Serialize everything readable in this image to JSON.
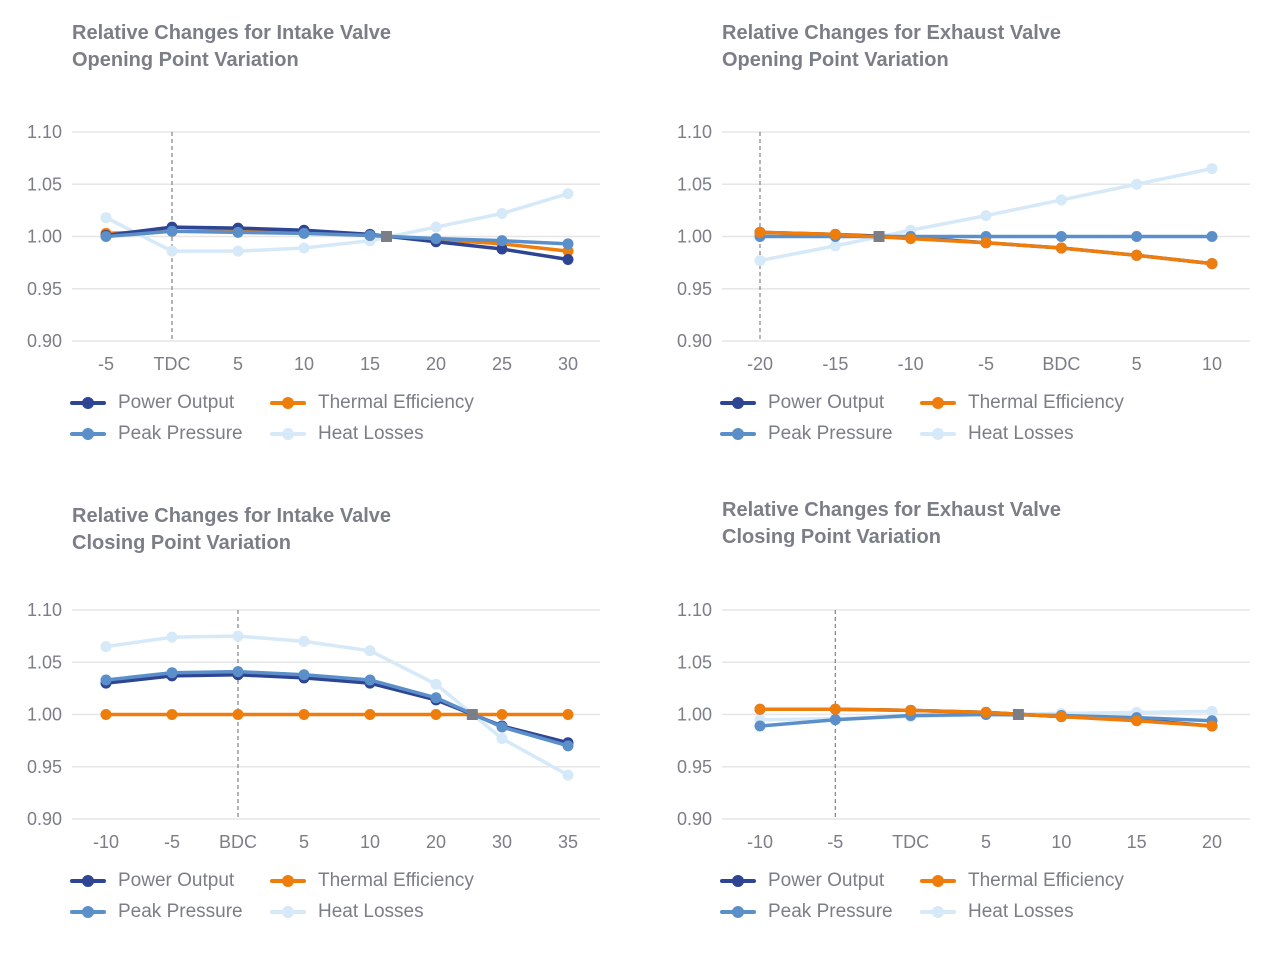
{
  "colors": {
    "power_output": "#2e4593",
    "peak_pressure": "#5b8fc9",
    "thermal_efficiency": "#ee7d0c",
    "heat_losses": "#d5e9f9",
    "reference": "#7b7e87",
    "grid": "#e6e6e6",
    "text": "#7b7e87"
  },
  "legend": [
    {
      "key": "power_output",
      "label": "Power Output"
    },
    {
      "key": "thermal_efficiency",
      "label": "Thermal Efficiency"
    },
    {
      "key": "peak_pressure",
      "label": "Peak Pressure"
    },
    {
      "key": "heat_losses",
      "label": "Heat Losses"
    }
  ],
  "chart_data": [
    {
      "type": "line",
      "title_line1": "Relative Changes for Intake Valve",
      "title_line2": "Opening Point Variation",
      "categories": [
        "-5",
        "TDC",
        "5",
        "10",
        "15",
        "20",
        "25",
        "30"
      ],
      "ylim": [
        0.9,
        1.1
      ],
      "yticks": [
        "0.90",
        "0.95",
        "1.00",
        "1.05",
        "1.10"
      ],
      "grid": true,
      "legend_position": "bottom",
      "marker_line_category_index": 1,
      "reference_point": {
        "x_index": 4.25,
        "y": 1.0
      },
      "series": [
        {
          "name": "Heat Losses",
          "key": "heat_losses",
          "values": [
            1.018,
            0.986,
            0.986,
            0.989,
            0.996,
            1.009,
            1.022,
            1.041
          ]
        },
        {
          "name": "Thermal Efficiency",
          "key": "thermal_efficiency",
          "values": [
            1.003,
            1.005,
            1.005,
            1.004,
            1.001,
            0.997,
            0.993,
            0.986
          ]
        },
        {
          "name": "Power Output",
          "key": "power_output",
          "values": [
            1.001,
            1.009,
            1.008,
            1.006,
            1.002,
            0.995,
            0.988,
            0.978
          ]
        },
        {
          "name": "Peak Pressure",
          "key": "peak_pressure",
          "values": [
            1.0,
            1.005,
            1.004,
            1.003,
            1.001,
            0.998,
            0.996,
            0.993
          ]
        }
      ]
    },
    {
      "type": "line",
      "title_line1": "Relative Changes for Exhaust Valve",
      "title_line2": "Opening Point Variation",
      "categories": [
        "-20",
        "-15",
        "-10",
        "-5",
        "BDC",
        "5",
        "10"
      ],
      "ylim": [
        0.9,
        1.1
      ],
      "yticks": [
        "0.90",
        "0.95",
        "1.00",
        "1.05",
        "1.10"
      ],
      "grid": true,
      "legend_position": "bottom",
      "marker_line_category_index": 0,
      "reference_point": {
        "x_index": 1.58,
        "y": 1.0
      },
      "series": [
        {
          "name": "Heat Losses",
          "key": "heat_losses",
          "values": [
            0.977,
            0.991,
            1.006,
            1.02,
            1.035,
            1.05,
            1.065
          ]
        },
        {
          "name": "Power Output",
          "key": "power_output",
          "values": [
            1.004,
            1.002,
            0.999,
            0.994,
            0.989,
            0.982,
            0.974
          ]
        },
        {
          "name": "Peak Pressure",
          "key": "peak_pressure",
          "values": [
            1.0,
            1.0,
            1.0,
            1.0,
            1.0,
            1.0,
            1.0
          ]
        },
        {
          "name": "Thermal Efficiency",
          "key": "thermal_efficiency",
          "values": [
            1.004,
            1.002,
            0.998,
            0.994,
            0.989,
            0.982,
            0.974
          ]
        }
      ]
    },
    {
      "type": "line",
      "title_line1": "Relative Changes for Intake Valve",
      "title_line2": "Closing Point Variation",
      "categories": [
        "-10",
        "-5",
        "BDC",
        "5",
        "10",
        "20",
        "30",
        "35"
      ],
      "ylim": [
        0.9,
        1.1
      ],
      "yticks": [
        "0.90",
        "0.95",
        "1.00",
        "1.05",
        "1.10"
      ],
      "grid": true,
      "legend_position": "bottom",
      "marker_line_category_index": 2,
      "reference_point": {
        "x_index": 5.55,
        "y": 1.0
      },
      "series": [
        {
          "name": "Heat Losses",
          "key": "heat_losses",
          "values": [
            1.065,
            1.074,
            1.075,
            1.07,
            1.061,
            1.029,
            0.977,
            0.942
          ]
        },
        {
          "name": "Thermal Efficiency",
          "key": "thermal_efficiency",
          "values": [
            1.0,
            1.0,
            1.0,
            1.0,
            1.0,
            1.0,
            1.0,
            1.0
          ]
        },
        {
          "name": "Power Output",
          "key": "power_output",
          "values": [
            1.03,
            1.037,
            1.038,
            1.035,
            1.03,
            1.014,
            0.989,
            0.973
          ]
        },
        {
          "name": "Peak Pressure",
          "key": "peak_pressure",
          "values": [
            1.033,
            1.04,
            1.041,
            1.038,
            1.033,
            1.016,
            0.988,
            0.97
          ]
        }
      ]
    },
    {
      "type": "line",
      "title_line1": "Relative Changes for Exhaust Valve",
      "title_line2": "Closing Point Variation",
      "categories": [
        "-10",
        "-5",
        "TDC",
        "5",
        "10",
        "15",
        "20"
      ],
      "ylim": [
        0.9,
        1.1
      ],
      "yticks": [
        "0.90",
        "0.95",
        "1.00",
        "1.05",
        "1.10"
      ],
      "grid": true,
      "legend_position": "bottom",
      "marker_line_category_index": 1,
      "reference_point": {
        "x_index": 3.43,
        "y": 1.0
      },
      "series": [
        {
          "name": "Heat Losses",
          "key": "heat_losses",
          "values": [
            0.995,
            0.996,
            0.998,
            1.0,
            1.001,
            1.002,
            1.003
          ]
        },
        {
          "name": "Power Output",
          "key": "power_output",
          "values": [
            1.005,
            1.005,
            1.004,
            1.002,
            0.998,
            0.995,
            0.989
          ]
        },
        {
          "name": "Peak Pressure",
          "key": "peak_pressure",
          "values": [
            0.989,
            0.995,
            0.999,
            1.0,
            0.999,
            0.997,
            0.994
          ]
        },
        {
          "name": "Thermal Efficiency",
          "key": "thermal_efficiency",
          "values": [
            1.005,
            1.005,
            1.004,
            1.002,
            0.998,
            0.994,
            0.989
          ]
        }
      ]
    }
  ]
}
